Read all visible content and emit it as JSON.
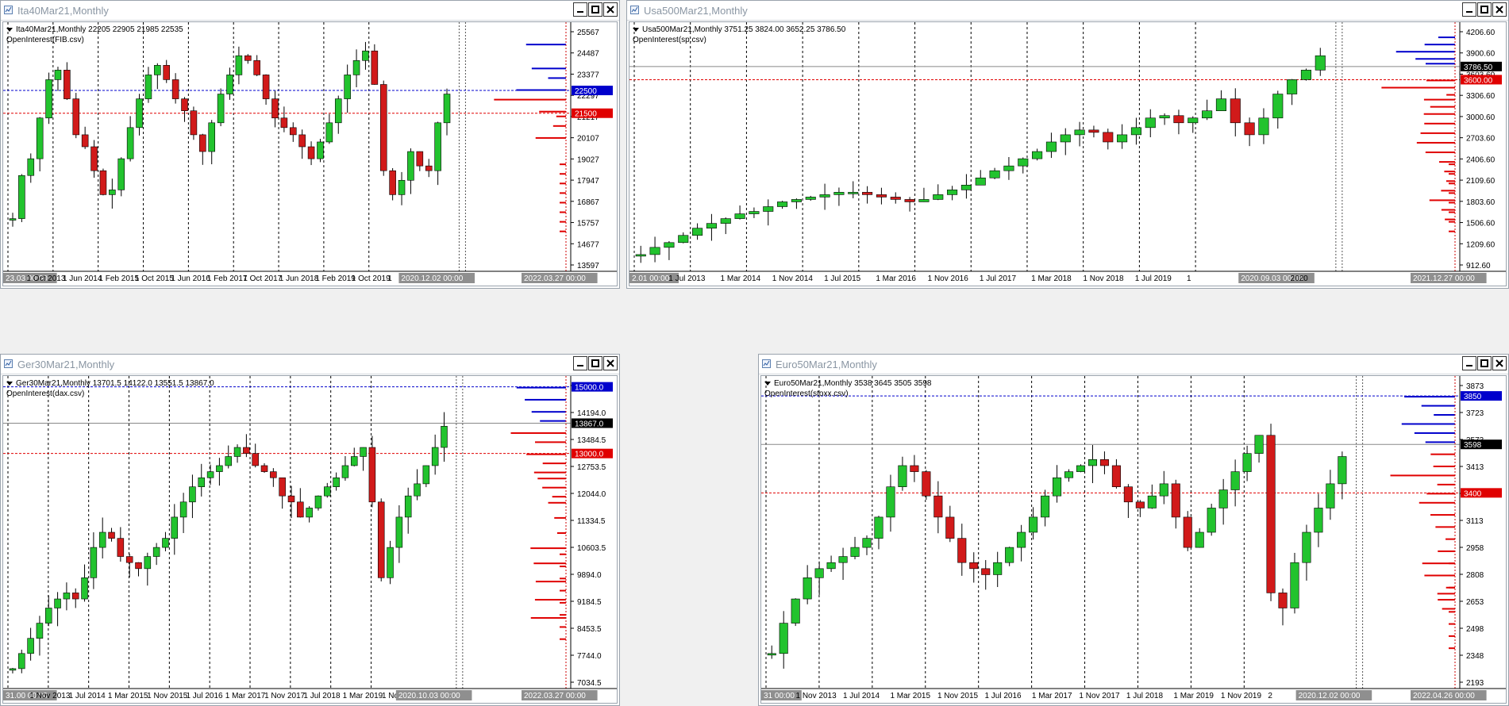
{
  "windows": [
    {
      "title": "Ita40Mar21,Monthly",
      "info_line": "Ita40Mar21,Monthly  22205 22905 21985 22535",
      "indicator": "OpenInterest(FIB.csv)",
      "y_labels": [
        "25567",
        "24487",
        "23377",
        "22297",
        "21217",
        "20107",
        "19027",
        "17947",
        "16867",
        "15757",
        "14677",
        "13597"
      ],
      "x_labels": [
        "23.03 00:00",
        "1 Oct 2013",
        "1 Jun 2014",
        "1 Feb 2015",
        "1 Oct 2015",
        "1 Jun 2016",
        "1 Feb 2017",
        "1 Oct 2017",
        "1 Jun 2018",
        "1 Feb 2019",
        "1 Oct 2019",
        "1",
        "2020.12.02 00:00",
        "2022.03.27 00:00"
      ],
      "price_tags": [
        {
          "label": "22500",
          "color": "#0000cc"
        },
        {
          "label": "21500",
          "color": "#e00000"
        }
      ]
    },
    {
      "title": "Usa500Mar21,Monthly",
      "info_line": "Usa500Mar21,Monthly  3751.25 3824.00 3652.25 3786.50",
      "indicator": "OpenInterest(sp.csv)",
      "y_labels": [
        "4206.60",
        "3900.60",
        "3603.60",
        "3306.60",
        "3000.60",
        "2703.60",
        "2406.60",
        "2109.60",
        "1803.60",
        "1506.60",
        "1209.60",
        "912.60"
      ],
      "x_labels": [
        "2.01 00:00",
        "1 Jul 2013",
        "1 Mar 2014",
        "1 Nov 2014",
        "1 Jul 2015",
        "1 Mar 2016",
        "1 Nov 2016",
        "1 Jul 2017",
        "1 Mar 2018",
        "1 Nov 2018",
        "1 Jul 2019",
        "1",
        "2020.09.03 00:00",
        "2020",
        "2021.12.27 00:00"
      ],
      "price_tags": [
        {
          "label": "3786.50",
          "color": "#000000"
        },
        {
          "label": "3600.00",
          "color": "#e00000"
        }
      ]
    },
    {
      "title": "Ger30Mar21,Monthly",
      "info_line": "Ger30Mar21,Monthly  13701.5 14122.0 13551.5 13867.0",
      "indicator": "OpenInterest(dax.csv)",
      "y_labels": [
        "14925.0",
        "14194.0",
        "13484.5",
        "12753.5",
        "12044.0",
        "11334.5",
        "10603.5",
        "9894.0",
        "9184.5",
        "8453.5",
        "7744.0",
        "7034.5"
      ],
      "x_labels": [
        "31.00 00:00",
        "1 Nov 2013",
        "1 Jul 2014",
        "1 Mar 2015",
        "1 Nov 2015",
        "1 Jul 2016",
        "1 Mar 2017",
        "1 Nov 2017",
        "1 Jul 2018",
        "1 Mar 2019",
        "1 Nov 2019",
        "2020.10.03 00:00",
        "2022.03.27 00:00"
      ],
      "price_tags": [
        {
          "label": "15000.0",
          "color": "#0000cc"
        },
        {
          "label": "13867.0",
          "color": "#000000"
        },
        {
          "label": "13000.0",
          "color": "#e00000"
        }
      ]
    },
    {
      "title": "Euro50Mar21,Monthly",
      "info_line": "Euro50Mar21,Monthly  3538 3645 3505 3598",
      "indicator": "OpenInterest(stoxx.csv)",
      "y_labels": [
        "3873",
        "3723",
        "3573",
        "3413",
        "3263",
        "3113",
        "2958",
        "2808",
        "2653",
        "2498",
        "2348",
        "2193"
      ],
      "x_labels": [
        "31 00:00",
        "1 Nov 2013",
        "1 Jul 2014",
        "1 Mar 2015",
        "1 Nov 2015",
        "1 Jul 2016",
        "1 Mar 2017",
        "1 Nov 2017",
        "1 Jul 2018",
        "1 Mar 2019",
        "1 Nov 2019",
        "2",
        "2020.12.02 00:00",
        "2022.04.26 00:00"
      ],
      "price_tags": [
        {
          "label": "3850",
          "color": "#0000cc"
        },
        {
          "label": "3598",
          "color": "#000000"
        },
        {
          "label": "3400",
          "color": "#e00000"
        }
      ]
    }
  ],
  "colors": {
    "bull": "#22c32e",
    "bear": "#d11a1a",
    "call": "#0000cc",
    "put": "#e00000"
  }
}
